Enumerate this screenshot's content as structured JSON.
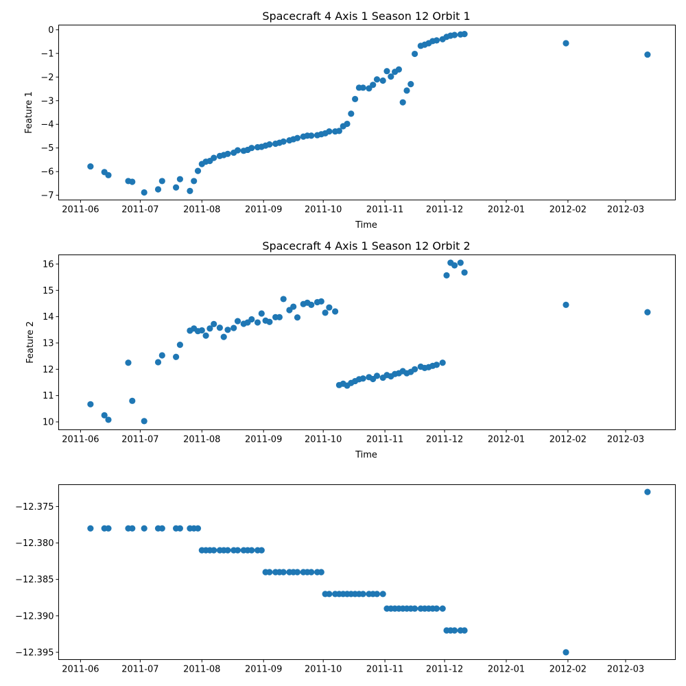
{
  "chart_data": [
    {
      "type": "scatter",
      "title": "Spacecraft 4 Axis 1 Season 12 Orbit 1",
      "xlabel": "Time",
      "ylabel": "Feature 1",
      "xlim": [
        "2011-05-21",
        "2012-03-26"
      ],
      "ylim": [
        -7.2,
        0.2
      ],
      "xticks": [
        "2011-06-01",
        "2011-07-01",
        "2011-08-01",
        "2011-09-01",
        "2011-10-01",
        "2011-11-01",
        "2011-12-01",
        "2012-01-01",
        "2012-02-01",
        "2012-03-01"
      ],
      "xtick_labels": [
        "2011-06",
        "2011-07",
        "2011-08",
        "2011-09",
        "2011-10",
        "2011-11",
        "2011-12",
        "2012-01",
        "2012-02",
        "2012-03"
      ],
      "yticks": [
        -7,
        -6,
        -5,
        -4,
        -3,
        -2,
        -1,
        0
      ],
      "ytick_labels": [
        "−7",
        "−6",
        "−5",
        "−4",
        "−3",
        "−2",
        "−1",
        "0"
      ],
      "color": "#1f77b4",
      "grid": false,
      "points": [
        [
          "2011-06-06",
          -5.78
        ],
        [
          "2011-06-13",
          -6.02
        ],
        [
          "2011-06-15",
          -6.15
        ],
        [
          "2011-06-25",
          -6.4
        ],
        [
          "2011-06-27",
          -6.43
        ],
        [
          "2011-07-03",
          -6.88
        ],
        [
          "2011-07-10",
          -6.75
        ],
        [
          "2011-07-12",
          -6.4
        ],
        [
          "2011-07-19",
          -6.67
        ],
        [
          "2011-07-21",
          -6.32
        ],
        [
          "2011-07-26",
          -6.82
        ],
        [
          "2011-07-28",
          -6.4
        ],
        [
          "2011-07-30",
          -5.97
        ],
        [
          "2011-08-01",
          -5.68
        ],
        [
          "2011-08-03",
          -5.58
        ],
        [
          "2011-08-05",
          -5.55
        ],
        [
          "2011-08-07",
          -5.42
        ],
        [
          "2011-08-10",
          -5.34
        ],
        [
          "2011-08-12",
          -5.3
        ],
        [
          "2011-08-14",
          -5.25
        ],
        [
          "2011-08-17",
          -5.2
        ],
        [
          "2011-08-19",
          -5.1
        ],
        [
          "2011-08-22",
          -5.12
        ],
        [
          "2011-08-24",
          -5.08
        ],
        [
          "2011-08-26",
          -5.0
        ],
        [
          "2011-08-29",
          -4.97
        ],
        [
          "2011-08-31",
          -4.95
        ],
        [
          "2011-09-02",
          -4.9
        ],
        [
          "2011-09-04",
          -4.85
        ],
        [
          "2011-09-07",
          -4.82
        ],
        [
          "2011-09-09",
          -4.78
        ],
        [
          "2011-09-11",
          -4.73
        ],
        [
          "2011-09-14",
          -4.68
        ],
        [
          "2011-09-16",
          -4.63
        ],
        [
          "2011-09-18",
          -4.58
        ],
        [
          "2011-09-21",
          -4.52
        ],
        [
          "2011-09-23",
          -4.48
        ],
        [
          "2011-09-25",
          -4.48
        ],
        [
          "2011-09-28",
          -4.46
        ],
        [
          "2011-09-30",
          -4.42
        ],
        [
          "2011-10-02",
          -4.38
        ],
        [
          "2011-10-04",
          -4.3
        ],
        [
          "2011-10-07",
          -4.3
        ],
        [
          "2011-10-09",
          -4.28
        ],
        [
          "2011-10-11",
          -4.08
        ],
        [
          "2011-10-13",
          -3.98
        ],
        [
          "2011-10-15",
          -3.55
        ],
        [
          "2011-10-17",
          -2.93
        ],
        [
          "2011-10-19",
          -2.45
        ],
        [
          "2011-10-21",
          -2.45
        ],
        [
          "2011-10-24",
          -2.48
        ],
        [
          "2011-10-26",
          -2.33
        ],
        [
          "2011-10-28",
          -2.1
        ],
        [
          "2011-10-31",
          -2.15
        ],
        [
          "2011-11-02",
          -1.75
        ],
        [
          "2011-11-04",
          -1.98
        ],
        [
          "2011-11-06",
          -1.78
        ],
        [
          "2011-11-08",
          -1.68
        ],
        [
          "2011-11-10",
          -3.07
        ],
        [
          "2011-11-12",
          -2.57
        ],
        [
          "2011-11-14",
          -2.3
        ],
        [
          "2011-11-16",
          -1.02
        ],
        [
          "2011-11-19",
          -0.68
        ],
        [
          "2011-11-21",
          -0.63
        ],
        [
          "2011-11-23",
          -0.57
        ],
        [
          "2011-11-25",
          -0.48
        ],
        [
          "2011-11-27",
          -0.45
        ],
        [
          "2011-11-30",
          -0.4
        ],
        [
          "2011-12-02",
          -0.3
        ],
        [
          "2011-12-04",
          -0.25
        ],
        [
          "2011-12-06",
          -0.22
        ],
        [
          "2011-12-09",
          -0.2
        ],
        [
          "2011-12-11",
          -0.18
        ],
        [
          "2012-01-31",
          -0.57
        ],
        [
          "2012-03-12",
          -1.05
        ]
      ]
    },
    {
      "type": "scatter",
      "title": "Spacecraft 4 Axis 1 Season 12 Orbit 2",
      "xlabel": "Time",
      "ylabel": "Feature 2",
      "xlim": [
        "2011-05-21",
        "2012-03-26"
      ],
      "ylim": [
        9.7,
        16.35
      ],
      "xticks": [
        "2011-06-01",
        "2011-07-01",
        "2011-08-01",
        "2011-09-01",
        "2011-10-01",
        "2011-11-01",
        "2011-12-01",
        "2012-01-01",
        "2012-02-01",
        "2012-03-01"
      ],
      "xtick_labels": [
        "2011-06",
        "2011-07",
        "2011-08",
        "2011-09",
        "2011-10",
        "2011-11",
        "2011-12",
        "2012-01",
        "2012-02",
        "2012-03"
      ],
      "yticks": [
        10,
        11,
        12,
        13,
        14,
        15,
        16
      ],
      "ytick_labels": [
        "10",
        "11",
        "12",
        "13",
        "14",
        "15",
        "16"
      ],
      "color": "#1f77b4",
      "grid": false,
      "points": [
        [
          "2011-06-06",
          10.67
        ],
        [
          "2011-06-13",
          10.25
        ],
        [
          "2011-06-15",
          10.08
        ],
        [
          "2011-06-25",
          12.25
        ],
        [
          "2011-06-27",
          10.8
        ],
        [
          "2011-07-03",
          10.03
        ],
        [
          "2011-07-10",
          12.27
        ],
        [
          "2011-07-12",
          12.53
        ],
        [
          "2011-07-19",
          12.47
        ],
        [
          "2011-07-21",
          12.93
        ],
        [
          "2011-07-26",
          13.47
        ],
        [
          "2011-07-28",
          13.55
        ],
        [
          "2011-07-30",
          13.45
        ],
        [
          "2011-08-01",
          13.48
        ],
        [
          "2011-08-03",
          13.28
        ],
        [
          "2011-08-05",
          13.55
        ],
        [
          "2011-08-07",
          13.72
        ],
        [
          "2011-08-10",
          13.58
        ],
        [
          "2011-08-12",
          13.23
        ],
        [
          "2011-08-14",
          13.5
        ],
        [
          "2011-08-17",
          13.57
        ],
        [
          "2011-08-19",
          13.83
        ],
        [
          "2011-08-22",
          13.73
        ],
        [
          "2011-08-24",
          13.78
        ],
        [
          "2011-08-26",
          13.9
        ],
        [
          "2011-08-29",
          13.78
        ],
        [
          "2011-08-31",
          14.12
        ],
        [
          "2011-09-02",
          13.85
        ],
        [
          "2011-09-04",
          13.8
        ],
        [
          "2011-09-07",
          13.98
        ],
        [
          "2011-09-09",
          13.98
        ],
        [
          "2011-09-11",
          14.67
        ],
        [
          "2011-09-14",
          14.25
        ],
        [
          "2011-09-16",
          14.38
        ],
        [
          "2011-09-18",
          13.97
        ],
        [
          "2011-09-21",
          14.48
        ],
        [
          "2011-09-23",
          14.53
        ],
        [
          "2011-09-25",
          14.45
        ],
        [
          "2011-09-28",
          14.55
        ],
        [
          "2011-09-30",
          14.58
        ],
        [
          "2011-10-02",
          14.15
        ],
        [
          "2011-10-04",
          14.35
        ],
        [
          "2011-10-07",
          14.2
        ],
        [
          "2011-10-09",
          11.4
        ],
        [
          "2011-10-11",
          11.45
        ],
        [
          "2011-10-13",
          11.38
        ],
        [
          "2011-10-15",
          11.48
        ],
        [
          "2011-10-17",
          11.55
        ],
        [
          "2011-10-19",
          11.62
        ],
        [
          "2011-10-21",
          11.65
        ],
        [
          "2011-10-24",
          11.7
        ],
        [
          "2011-10-26",
          11.63
        ],
        [
          "2011-10-28",
          11.75
        ],
        [
          "2011-10-31",
          11.68
        ],
        [
          "2011-11-02",
          11.78
        ],
        [
          "2011-11-04",
          11.73
        ],
        [
          "2011-11-06",
          11.82
        ],
        [
          "2011-11-08",
          11.85
        ],
        [
          "2011-11-10",
          11.93
        ],
        [
          "2011-11-12",
          11.85
        ],
        [
          "2011-11-14",
          11.9
        ],
        [
          "2011-11-16",
          12.0
        ],
        [
          "2011-11-19",
          12.1
        ],
        [
          "2011-11-21",
          12.05
        ],
        [
          "2011-11-23",
          12.08
        ],
        [
          "2011-11-25",
          12.13
        ],
        [
          "2011-11-27",
          12.17
        ],
        [
          "2011-11-30",
          12.25
        ],
        [
          "2011-12-02",
          15.57
        ],
        [
          "2011-12-04",
          16.05
        ],
        [
          "2011-12-06",
          15.95
        ],
        [
          "2011-12-09",
          16.05
        ],
        [
          "2011-12-11",
          15.68
        ],
        [
          "2012-01-31",
          14.45
        ],
        [
          "2012-03-12",
          14.17
        ]
      ]
    },
    {
      "type": "scatter",
      "title": "",
      "xlabel": "",
      "ylabel": "",
      "xlim": [
        "2011-05-21",
        "2012-03-26"
      ],
      "ylim": [
        -12.396,
        -12.372
      ],
      "xticks": [
        "2011-06-01",
        "2011-07-01",
        "2011-08-01",
        "2011-09-01",
        "2011-10-01",
        "2011-11-01",
        "2011-12-01",
        "2012-01-01",
        "2012-02-01",
        "2012-03-01"
      ],
      "xtick_labels": [
        "2011-06",
        "2011-07",
        "2011-08",
        "2011-09",
        "2011-10",
        "2011-11",
        "2011-12",
        "2012-01",
        "2012-02",
        "2012-03"
      ],
      "yticks": [
        -12.395,
        -12.39,
        -12.385,
        -12.38,
        -12.375
      ],
      "ytick_labels": [
        "−12.395",
        "−12.390",
        "−12.385",
        "−12.380",
        "−12.375"
      ],
      "color": "#1f77b4",
      "grid": false,
      "points": [
        [
          "2011-06-06",
          -12.378
        ],
        [
          "2011-06-13",
          -12.378
        ],
        [
          "2011-06-15",
          -12.378
        ],
        [
          "2011-06-25",
          -12.378
        ],
        [
          "2011-06-27",
          -12.378
        ],
        [
          "2011-07-03",
          -12.378
        ],
        [
          "2011-07-10",
          -12.378
        ],
        [
          "2011-07-12",
          -12.378
        ],
        [
          "2011-07-19",
          -12.378
        ],
        [
          "2011-07-21",
          -12.378
        ],
        [
          "2011-07-26",
          -12.378
        ],
        [
          "2011-07-28",
          -12.378
        ],
        [
          "2011-07-30",
          -12.378
        ],
        [
          "2011-08-01",
          -12.381
        ],
        [
          "2011-08-03",
          -12.381
        ],
        [
          "2011-08-05",
          -12.381
        ],
        [
          "2011-08-07",
          -12.381
        ],
        [
          "2011-08-10",
          -12.381
        ],
        [
          "2011-08-12",
          -12.381
        ],
        [
          "2011-08-14",
          -12.381
        ],
        [
          "2011-08-17",
          -12.381
        ],
        [
          "2011-08-19",
          -12.381
        ],
        [
          "2011-08-22",
          -12.381
        ],
        [
          "2011-08-24",
          -12.381
        ],
        [
          "2011-08-26",
          -12.381
        ],
        [
          "2011-08-29",
          -12.381
        ],
        [
          "2011-08-31",
          -12.381
        ],
        [
          "2011-09-02",
          -12.384
        ],
        [
          "2011-09-04",
          -12.384
        ],
        [
          "2011-09-07",
          -12.384
        ],
        [
          "2011-09-09",
          -12.384
        ],
        [
          "2011-09-11",
          -12.384
        ],
        [
          "2011-09-14",
          -12.384
        ],
        [
          "2011-09-16",
          -12.384
        ],
        [
          "2011-09-18",
          -12.384
        ],
        [
          "2011-09-21",
          -12.384
        ],
        [
          "2011-09-23",
          -12.384
        ],
        [
          "2011-09-25",
          -12.384
        ],
        [
          "2011-09-28",
          -12.384
        ],
        [
          "2011-09-30",
          -12.384
        ],
        [
          "2011-10-02",
          -12.387
        ],
        [
          "2011-10-04",
          -12.387
        ],
        [
          "2011-10-07",
          -12.387
        ],
        [
          "2011-10-09",
          -12.387
        ],
        [
          "2011-10-11",
          -12.387
        ],
        [
          "2011-10-13",
          -12.387
        ],
        [
          "2011-10-15",
          -12.387
        ],
        [
          "2011-10-17",
          -12.387
        ],
        [
          "2011-10-19",
          -12.387
        ],
        [
          "2011-10-21",
          -12.387
        ],
        [
          "2011-10-24",
          -12.387
        ],
        [
          "2011-10-26",
          -12.387
        ],
        [
          "2011-10-28",
          -12.387
        ],
        [
          "2011-10-31",
          -12.387
        ],
        [
          "2011-11-02",
          -12.389
        ],
        [
          "2011-11-04",
          -12.389
        ],
        [
          "2011-11-06",
          -12.389
        ],
        [
          "2011-11-08",
          -12.389
        ],
        [
          "2011-11-10",
          -12.389
        ],
        [
          "2011-11-12",
          -12.389
        ],
        [
          "2011-11-14",
          -12.389
        ],
        [
          "2011-11-16",
          -12.389
        ],
        [
          "2011-11-19",
          -12.389
        ],
        [
          "2011-11-21",
          -12.389
        ],
        [
          "2011-11-23",
          -12.389
        ],
        [
          "2011-11-25",
          -12.389
        ],
        [
          "2011-11-27",
          -12.389
        ],
        [
          "2011-11-30",
          -12.389
        ],
        [
          "2011-12-02",
          -12.392
        ],
        [
          "2011-12-04",
          -12.392
        ],
        [
          "2011-12-06",
          -12.392
        ],
        [
          "2011-12-09",
          -12.392
        ],
        [
          "2011-12-11",
          -12.392
        ],
        [
          "2012-01-31",
          -12.395
        ],
        [
          "2012-03-12",
          -12.373
        ]
      ]
    }
  ]
}
